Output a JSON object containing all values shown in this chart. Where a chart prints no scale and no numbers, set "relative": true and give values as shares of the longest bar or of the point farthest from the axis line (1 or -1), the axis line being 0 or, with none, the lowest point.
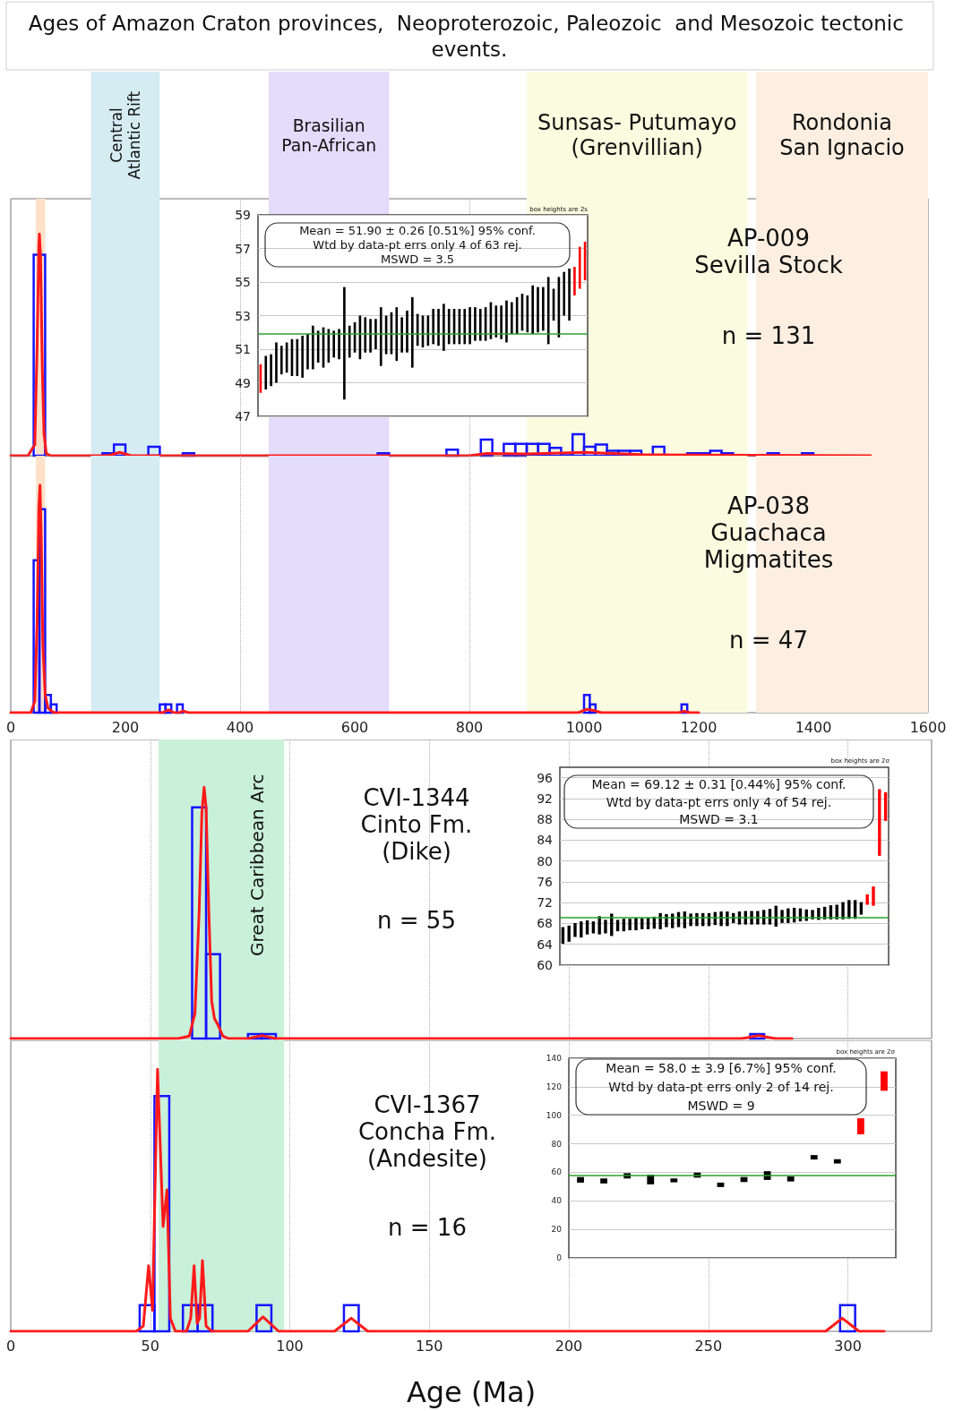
{
  "chart_data": [
    {
      "type": "histogram",
      "title": "Ages of Amazon Craton provinces,  Neoproterozoic, Paleozoic  and Mesozoic tectonic events.",
      "relative": true,
      "xlim": [
        0,
        1600
      ],
      "xticks": [
        0,
        200,
        400,
        600,
        800,
        1000,
        1200,
        1400,
        1600
      ],
      "tick_labels": false,
      "grid": "x",
      "bands": [
        {
          "axis": "x",
          "from": 44,
          "to": 60,
          "color": "#fde1c8"
        },
        {
          "axis": "x",
          "from": 140,
          "to": 260,
          "label": "Central\nAtlantic Rift",
          "color": "#d5ecf3"
        },
        {
          "axis": "x",
          "from": 450,
          "to": 660,
          "label": "Brasilian\nPan-African",
          "color": "#e4dcfb"
        },
        {
          "axis": "x",
          "from": 900,
          "to": 1285,
          "label": "Sunsas- Putumayo\n(Grenvillian)",
          "color": "#fbfbdf"
        },
        {
          "axis": "x",
          "from": 1300,
          "to": 1600,
          "label": "Rondonia\nSan Ignacio",
          "color": "#fcefe1"
        }
      ],
      "annotations": [
        "AP-009\nSevilla Stock",
        "n = 131"
      ],
      "series": [
        {
          "type": "histogram",
          "color": "#1414ff",
          "bins": [
            40,
            60,
            80,
            100,
            120,
            140,
            160,
            180,
            200,
            220,
            240,
            260,
            280,
            300,
            320,
            340,
            360,
            380,
            400,
            420,
            440,
            460,
            480,
            500,
            520,
            540,
            560,
            580,
            600,
            620,
            640,
            660,
            680,
            700,
            720,
            740,
            760,
            780,
            800,
            820,
            840,
            860,
            880,
            900,
            920,
            940,
            960,
            980,
            1000,
            1020,
            1040,
            1060,
            1080,
            1100,
            1120,
            1140,
            1160,
            1180,
            1200,
            1220,
            1240,
            1260,
            1280,
            1300,
            1320,
            1340,
            1360,
            1380,
            1400
          ],
          "values": [
            0.907,
            0,
            0,
            0,
            0,
            0,
            0.011,
            0.051,
            0,
            0,
            0.04,
            0,
            0,
            0.011,
            0,
            0,
            0,
            0,
            0,
            0,
            0,
            0,
            0,
            0,
            0,
            0,
            0,
            0,
            0,
            0,
            0.011,
            0,
            0,
            0,
            0,
            0,
            0.027,
            0,
            0,
            0.073,
            0,
            0.054,
            0.054,
            0.054,
            0.054,
            0.035,
            0.011,
            0.097,
            0.04,
            0.051,
            0.022,
            0.022,
            0.022,
            0,
            0.04,
            0,
            0,
            0.011,
            0.011,
            0.022,
            0.011,
            0,
            0,
            0,
            0.011,
            0,
            0,
            0.011
          ]
        },
        {
          "type": "line",
          "color": "#ff1a1a",
          "x": [
            0,
            30,
            42,
            46,
            49,
            50,
            52,
            55,
            58,
            62,
            70,
            170,
            190,
            210,
            800,
            830,
            900,
            1000,
            1100,
            1200,
            1500
          ],
          "values": [
            0,
            0,
            0.05,
            0.5,
            0.95,
            1,
            0.9,
            0.4,
            0.1,
            0.01,
            0,
            0,
            0.015,
            0,
            0,
            0.01,
            0.008,
            0.015,
            0.005,
            0.003,
            0
          ]
        }
      ]
    },
    {
      "type": "bar",
      "categories": [
        null,
        null,
        null,
        null,
        null,
        null,
        null,
        null,
        null,
        null,
        null,
        null,
        null,
        null,
        null,
        null,
        null,
        null,
        null,
        null,
        null,
        null,
        null,
        null,
        null,
        null,
        null,
        null,
        null,
        null,
        null,
        null,
        null,
        null,
        null,
        null,
        null,
        null,
        null,
        null,
        null,
        null,
        null,
        null,
        null,
        null,
        null,
        null,
        null,
        null,
        null,
        null,
        null,
        null,
        null,
        null,
        null,
        null,
        null,
        null,
        null,
        null,
        null
      ],
      "base": [
        48.4,
        48.6,
        48.8,
        49.0,
        49.5,
        49.6,
        49.4,
        49.4,
        49.3,
        49.8,
        49.8,
        50.2,
        49.9,
        50.2,
        50.5,
        50.4,
        48.0,
        50.5,
        50.8,
        50.4,
        50.8,
        50.8,
        51.0,
        50.0,
        50.7,
        50.7,
        50.3,
        50.8,
        50.8,
        49.9,
        51.2,
        51.1,
        51.2,
        51.3,
        51.2,
        50.9,
        51.3,
        51.3,
        51.3,
        51.3,
        51.3,
        51.5,
        51.5,
        51.5,
        51.6,
        51.7,
        51.6,
        51.4,
        51.9,
        51.9,
        52.1,
        52.0,
        51.9,
        52.0,
        52.1,
        51.3,
        52.7,
        51.7,
        53.0,
        52.7,
        54.2,
        54.6,
        55.1
      ],
      "values": [
        1.7,
        2.0,
        1.9,
        2.4,
        1.7,
        1.8,
        2.2,
        2.2,
        2.5,
        2.1,
        2.6,
        1.9,
        2.4,
        2.0,
        1.6,
        1.8,
        6.7,
        1.9,
        1.8,
        2.6,
        2.1,
        2.0,
        1.8,
        3.5,
        2.3,
        2.5,
        3.2,
        2.1,
        2.5,
        4.2,
        1.9,
        1.9,
        1.8,
        2.1,
        2.2,
        2.8,
        2.1,
        2.1,
        2.1,
        2.1,
        2.2,
        2.0,
        1.9,
        2.0,
        2.2,
        1.9,
        2.0,
        2.5,
        1.9,
        2.2,
        2.2,
        2.2,
        2.9,
        2.7,
        2.6,
        4.0,
        1.9,
        3.6,
        2.6,
        3.1,
        1.7,
        2.5,
        2.3
      ],
      "colors": [
        "#ff0000",
        "#000000",
        "#000000",
        "#000000",
        "#000000",
        "#000000",
        "#000000",
        "#000000",
        "#000000",
        "#000000",
        "#000000",
        "#000000",
        "#000000",
        "#000000",
        "#000000",
        "#000000",
        "#000000",
        "#000000",
        "#000000",
        "#000000",
        "#000000",
        "#000000",
        "#000000",
        "#000000",
        "#000000",
        "#000000",
        "#000000",
        "#000000",
        "#000000",
        "#000000",
        "#000000",
        "#000000",
        "#000000",
        "#000000",
        "#000000",
        "#000000",
        "#000000",
        "#000000",
        "#000000",
        "#000000",
        "#000000",
        "#000000",
        "#000000",
        "#000000",
        "#000000",
        "#000000",
        "#000000",
        "#000000",
        "#000000",
        "#000000",
        "#000000",
        "#000000",
        "#000000",
        "#000000",
        "#000000",
        "#000000",
        "#000000",
        "#000000",
        "#000000",
        "#000000",
        "#ff0000",
        "#ff0000",
        "#ff0000"
      ],
      "ylim": [
        47,
        59
      ],
      "yticks": [
        47,
        49,
        51,
        53,
        55,
        57,
        59
      ],
      "grid": "y",
      "tick_labels": "y",
      "ref_lines": [
        {
          "axis": "y",
          "value": 51.9,
          "color": "#2ca02c"
        }
      ],
      "annotations": [
        "Mean = 51.90 ± 0.26 [0.51%] 95% conf.",
        "Wtd by data-pt errs only 4 of 63 rej.",
        "MSWD = 3.5",
        "box heights are 2s"
      ]
    },
    {
      "type": "histogram",
      "relative": true,
      "xlim": [
        0,
        1600
      ],
      "xticks": [
        0,
        200,
        400,
        600,
        800,
        1000,
        1200,
        1400,
        1600
      ],
      "tick_labels": "x",
      "grid": "x",
      "bands": [
        {
          "axis": "x",
          "from": 44,
          "to": 60,
          "color": "#fde1c8"
        },
        {
          "axis": "x",
          "from": 140,
          "to": 260,
          "color": "#d5ecf3"
        },
        {
          "axis": "x",
          "from": 450,
          "to": 660,
          "color": "#e4dcfb"
        },
        {
          "axis": "x",
          "from": 900,
          "to": 1285,
          "color": "#fbfbdf"
        },
        {
          "axis": "x",
          "from": 1300,
          "to": 1600,
          "color": "#fcefe1"
        }
      ],
      "annotations": [
        "AP-038\nGuachaca\nMigmatites",
        "n = 47"
      ],
      "series": [
        {
          "type": "histogram",
          "color": "#1414ff",
          "bins": [
            40,
            50,
            60,
            70,
            80,
            260,
            270,
            280,
            290,
            300,
            1000,
            1010,
            1020,
            1170,
            1180
          ],
          "values": [
            0.67,
            0.895,
            0.078,
            0.036,
            0,
            0.036,
            0.036,
            0,
            0.036,
            0,
            0.078,
            0.036,
            0,
            0.036
          ]
        },
        {
          "type": "line",
          "color": "#ff1a1a",
          "x": [
            0,
            35,
            42,
            46,
            49,
            51,
            53,
            56,
            60,
            65,
            75,
            265,
            275,
            285,
            295,
            300,
            310,
            990,
            1005,
            1020,
            1030,
            1165,
            1175,
            1185,
            1200
          ],
          "values": [
            0,
            0,
            0.05,
            0.4,
            0.9,
            1,
            0.8,
            0.3,
            0.08,
            0.02,
            0,
            0,
            0.012,
            0,
            0,
            0.008,
            0,
            0,
            0.015,
            0.008,
            0,
            0,
            0.006,
            0,
            0
          ]
        }
      ]
    },
    {
      "type": "histogram",
      "relative": true,
      "xlim": [
        0,
        330
      ],
      "xticks": [
        0,
        50,
        100,
        150,
        200,
        250,
        300
      ],
      "tick_labels": false,
      "grid": "x",
      "bands": [
        {
          "axis": "x",
          "from": 53,
          "to": 98,
          "label": "Great Caribbean Arc",
          "color": "#c9f0d9"
        }
      ],
      "annotations": [
        "CVI-1344\nCinto Fm.\n(Dike)",
        "n = 55"
      ],
      "series": [
        {
          "type": "histogram",
          "color": "#1414ff",
          "bins": [
            65,
            70,
            75,
            85,
            90,
            95,
            265,
            270
          ],
          "values": [
            0.92,
            0.336,
            0,
            0.018,
            0.018,
            0,
            0.018
          ]
        },
        {
          "type": "line",
          "color": "#ff1a1a",
          "x": [
            0,
            60,
            64,
            66,
            67.5,
            68.5,
            69.3,
            70,
            71,
            72,
            73,
            74,
            76,
            78,
            85,
            90,
            95,
            262,
            268,
            274,
            280
          ],
          "values": [
            0,
            0,
            0.01,
            0.1,
            0.5,
            0.9,
            1,
            0.92,
            0.5,
            0.15,
            0.08,
            0.06,
            0.01,
            0,
            0,
            0.012,
            0,
            0,
            0.012,
            0,
            0
          ]
        }
      ]
    },
    {
      "type": "bar",
      "categories": [
        null,
        null,
        null,
        null,
        null,
        null,
        null,
        null,
        null,
        null,
        null,
        null,
        null,
        null,
        null,
        null,
        null,
        null,
        null,
        null,
        null,
        null,
        null,
        null,
        null,
        null,
        null,
        null,
        null,
        null,
        null,
        null,
        null,
        null,
        null,
        null,
        null,
        null,
        null,
        null,
        null,
        null,
        null,
        null,
        null,
        null,
        null,
        null,
        null,
        null,
        null,
        null,
        null,
        null
      ],
      "base": [
        64.1,
        64.5,
        65.4,
        65.3,
        65.9,
        66.1,
        65.9,
        66.1,
        65.6,
        66.5,
        66.5,
        66.7,
        66.7,
        66.9,
        66.9,
        67.0,
        66.9,
        67.3,
        67.1,
        67.3,
        67.1,
        67.5,
        67.5,
        67.5,
        67.5,
        67.7,
        67.5,
        67.5,
        68.1,
        67.8,
        67.8,
        67.8,
        67.8,
        67.8,
        67.8,
        67.4,
        68.1,
        68.1,
        68.2,
        68.4,
        68.5,
        68.8,
        68.7,
        68.8,
        68.8,
        68.8,
        68.8,
        68.9,
        68.9,
        69.7,
        71.6,
        71.4,
        81.0,
        87.7
      ],
      "values": [
        3.2,
        3.1,
        2.7,
        3.1,
        2.7,
        2.3,
        3.5,
        2.6,
        4.3,
        2.2,
        2.4,
        2.2,
        2.4,
        2.1,
        2.2,
        2.3,
        3.1,
        2.5,
        2.8,
        2.9,
        3.2,
        2.4,
        2.5,
        2.5,
        2.5,
        2.5,
        2.8,
        2.8,
        1.9,
        2.5,
        2.6,
        2.6,
        2.6,
        2.8,
        3.0,
        4.0,
        2.5,
        2.8,
        2.8,
        2.5,
        2.2,
        1.8,
        2.3,
        2.4,
        2.7,
        2.8,
        3.3,
        3.6,
        3.6,
        2.4,
        2.0,
        3.7,
        12.8,
        5.5
      ],
      "colors": [
        "#000000",
        "#000000",
        "#000000",
        "#000000",
        "#000000",
        "#000000",
        "#000000",
        "#000000",
        "#000000",
        "#000000",
        "#000000",
        "#000000",
        "#000000",
        "#000000",
        "#000000",
        "#000000",
        "#000000",
        "#000000",
        "#000000",
        "#000000",
        "#000000",
        "#000000",
        "#000000",
        "#000000",
        "#000000",
        "#000000",
        "#000000",
        "#000000",
        "#000000",
        "#000000",
        "#000000",
        "#000000",
        "#000000",
        "#000000",
        "#000000",
        "#000000",
        "#000000",
        "#000000",
        "#000000",
        "#000000",
        "#000000",
        "#000000",
        "#000000",
        "#000000",
        "#000000",
        "#000000",
        "#000000",
        "#000000",
        "#000000",
        "#000000",
        "#ff0000",
        "#ff0000",
        "#ff0000",
        "#ff0000"
      ],
      "ylim": [
        60,
        98
      ],
      "yticks": [
        60,
        64,
        68,
        72,
        76,
        80,
        84,
        88,
        92,
        96
      ],
      "grid": "y",
      "tick_labels": "y",
      "ref_lines": [
        {
          "axis": "y",
          "value": 69.12,
          "color": "#2ca02c"
        }
      ],
      "annotations": [
        "Mean = 69.12 ± 0.31 [0.44%] 95% conf.",
        "Wtd by data-pt errs only 4 of 54 rej.",
        "MSWD = 3.1",
        "box heights are 2σ"
      ]
    },
    {
      "type": "histogram",
      "relative": true,
      "xlabel": "Age (Ma)",
      "xlim": [
        0,
        330
      ],
      "xticks": [
        0,
        50,
        100,
        150,
        200,
        250,
        300
      ],
      "tick_labels": "x",
      "grid": "x",
      "bands": [
        {
          "axis": "x",
          "from": 53,
          "to": 98,
          "color": "#c9f0d9"
        }
      ],
      "annotations": [
        "CVI-1367\nConcha Fm.\n(Andesite)",
        "n = 16"
      ],
      "series": [
        {
          "type": "histogram",
          "color": "#1414ff",
          "bins": [
            46.2,
            51.5,
            56.8,
            61.7,
            67,
            72.3,
            88.1,
            93.4,
            119.4,
            124.7,
            297.2,
            302.6
          ],
          "values": [
            0.1,
            0.897,
            0,
            0.1,
            0.1,
            0,
            0.1,
            0,
            0.1,
            0,
            0.1
          ]
        },
        {
          "type": "line",
          "color": "#ff1a1a",
          "x": [
            0,
            45,
            47.5,
            49.4,
            50.8,
            52.6,
            54.6,
            56,
            57.2,
            59,
            63,
            64.5,
            65.7,
            66.8,
            67.7,
            68.7,
            70,
            72,
            85,
            90.4,
            96,
            116,
            122,
            128,
            292,
            298,
            304,
            313
          ],
          "values": [
            0,
            0,
            0.02,
            0.25,
            0.08,
            1,
            0.4,
            0.54,
            0.05,
            0,
            0,
            0.05,
            0.25,
            0.03,
            0.05,
            0.27,
            0.02,
            0,
            0,
            0.055,
            0,
            0,
            0.05,
            0,
            0,
            0.05,
            0,
            0
          ]
        }
      ]
    },
    {
      "type": "bar",
      "categories": [
        null,
        null,
        null,
        null,
        null,
        null,
        null,
        null,
        null,
        null,
        null,
        null,
        null,
        null
      ],
      "base": [
        52.8,
        52.2,
        55.7,
        51.6,
        53.0,
        56.3,
        49.7,
        53.2,
        54.7,
        53.6,
        69.0,
        66.2,
        86.7,
        117.2
      ],
      "values": [
        3.9,
        3.5,
        3.7,
        6.8,
        2.7,
        3.5,
        3.1,
        3.5,
        6.1,
        3.5,
        3.1,
        3.0,
        11.2,
        13.6
      ],
      "colors": [
        "#000000",
        "#000000",
        "#000000",
        "#000000",
        "#000000",
        "#000000",
        "#000000",
        "#000000",
        "#000000",
        "#000000",
        "#000000",
        "#000000",
        "#ff0000",
        "#ff0000"
      ],
      "ylim": [
        0,
        140
      ],
      "yticks": [
        0,
        20,
        40,
        60,
        80,
        100,
        120,
        140
      ],
      "grid": "y",
      "tick_labels": "y",
      "ref_lines": [
        {
          "axis": "y",
          "value": 58.0,
          "color": "#2ca02c"
        }
      ],
      "annotations": [
        "Mean = 58.0 ± 3.9 [6.7%] 95% conf.",
        "Wtd by data-pt errs only 2 of 14 rej.",
        "MSWD = 9",
        "box heights are 2σ"
      ]
    }
  ]
}
